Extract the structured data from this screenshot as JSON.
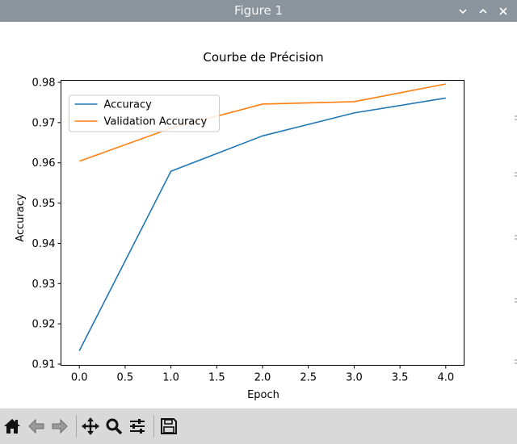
{
  "window": {
    "title": "Figure 1",
    "controls": [
      {
        "name": "minimize-button",
        "icon": "chevron-down-icon"
      },
      {
        "name": "maximize-button",
        "icon": "chevron-up-icon"
      },
      {
        "name": "close-button",
        "icon": "close-icon"
      }
    ]
  },
  "toolbar": {
    "buttons": [
      {
        "name": "home-button",
        "icon": "home-icon"
      },
      {
        "name": "back-button",
        "icon": "back-arrow-icon"
      },
      {
        "name": "forward-button",
        "icon": "forward-arrow-icon"
      },
      {
        "name": "pan-button",
        "icon": "move-icon"
      },
      {
        "name": "zoom-button",
        "icon": "zoom-icon"
      },
      {
        "name": "configure-subplots-button",
        "icon": "sliders-icon"
      },
      {
        "name": "save-button",
        "icon": "save-icon"
      }
    ]
  },
  "chart_data": {
    "type": "line",
    "title": "Courbe de Précision",
    "xlabel": "Epoch",
    "ylabel": "Accuracy",
    "x": [
      0,
      1,
      2,
      3,
      4
    ],
    "xlim": [
      -0.2,
      4.2
    ],
    "ylim": [
      0.9097,
      0.9805
    ],
    "xticks": [
      "0.0",
      "0.5",
      "1.0",
      "1.5",
      "2.0",
      "2.5",
      "3.0",
      "3.5",
      "4.0"
    ],
    "yticks": [
      "0.91",
      "0.92",
      "0.93",
      "0.94",
      "0.95",
      "0.96",
      "0.97",
      "0.98"
    ],
    "grid": false,
    "legend_position": "top-left",
    "series": [
      {
        "name": "Accuracy",
        "color": "#1f77b4",
        "values": [
          0.9133,
          0.9579,
          0.9667,
          0.9724,
          0.9761
        ]
      },
      {
        "name": "Validation Accuracy",
        "color": "#ff7f0e",
        "values": [
          0.9604,
          0.9686,
          0.9746,
          0.9752,
          0.9796
        ]
      }
    ]
  }
}
